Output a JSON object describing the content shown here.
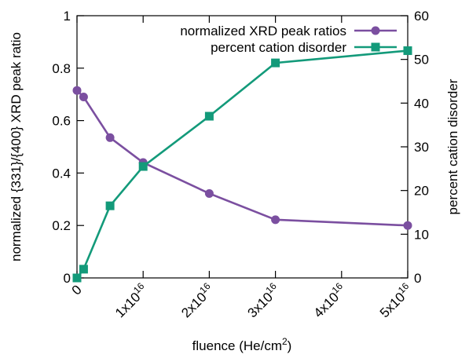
{
  "chart_data": {
    "type": "line",
    "xlabel": "fluence (He/cm²)",
    "xlabel_base": "fluence (He/cm",
    "xlabel_sup": "2",
    "xlabel_end": ")",
    "ylabel_left": "normalized {331}/{400} XRD peak ratio",
    "ylabel_right": "percent cation disorder",
    "xlim": [
      0,
      5e+16
    ],
    "ylim_left": [
      0,
      1
    ],
    "ylim_right": [
      0,
      60
    ],
    "x_ticks": [
      {
        "value": 0,
        "base": "0",
        "exp": ""
      },
      {
        "value": 1e+16,
        "base": "1x10",
        "exp": "16"
      },
      {
        "value": 2e+16,
        "base": "2x10",
        "exp": "16"
      },
      {
        "value": 3e+16,
        "base": "3x10",
        "exp": "16"
      },
      {
        "value": 4e+16,
        "base": "4x10",
        "exp": "16"
      },
      {
        "value": 5e+16,
        "base": "5x10",
        "exp": "16"
      }
    ],
    "y_left_ticks": [
      {
        "value": 0,
        "label": "0"
      },
      {
        "value": 0.2,
        "label": "0.2"
      },
      {
        "value": 0.4,
        "label": "0.4"
      },
      {
        "value": 0.6,
        "label": "0.6"
      },
      {
        "value": 0.8,
        "label": "0.8"
      },
      {
        "value": 1,
        "label": "1"
      }
    ],
    "y_right_ticks": [
      {
        "value": 0,
        "label": "0"
      },
      {
        "value": 10,
        "label": "10"
      },
      {
        "value": 20,
        "label": "20"
      },
      {
        "value": 30,
        "label": "30"
      },
      {
        "value": 40,
        "label": "40"
      },
      {
        "value": 50,
        "label": "50"
      },
      {
        "value": 60,
        "label": "60"
      }
    ],
    "legend_position": "top-right",
    "grid": false,
    "series": [
      {
        "name": "normalized XRD peak ratios",
        "axis": "left",
        "marker": "circle",
        "color": "#7B4FA0",
        "x": [
          0,
          1000000000000000.0,
          5000000000000000.0,
          1e+16,
          2e+16,
          3e+16,
          5e+16
        ],
        "y": [
          0.715,
          0.69,
          0.535,
          0.44,
          0.322,
          0.222,
          0.2
        ]
      },
      {
        "name": "percent cation disorder",
        "axis": "right",
        "marker": "square",
        "color": "#139A7A",
        "x": [
          0,
          1000000000000000.0,
          5000000000000000.0,
          1e+16,
          2e+16,
          3e+16,
          5e+16
        ],
        "y": [
          0,
          2,
          16.5,
          25.5,
          37,
          49.2,
          52
        ]
      }
    ]
  }
}
